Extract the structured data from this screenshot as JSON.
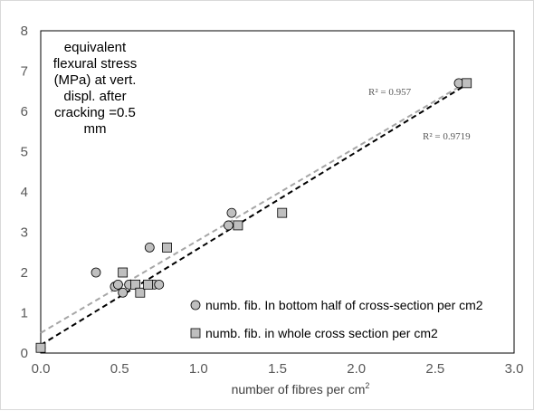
{
  "chart_data": {
    "type": "scatter",
    "ylabel_lines": [
      "equivalent",
      "flexural stress",
      "(MPa) at vert.",
      "displ. after",
      "cracking =0.5",
      "mm"
    ],
    "xlabel": "number of fibres per cm",
    "xlabel_sup": "2",
    "xlim": [
      0,
      3.0
    ],
    "ylim": [
      0,
      8
    ],
    "xticks": [
      "0.0",
      "0.5",
      "1.0",
      "1.5",
      "2.0",
      "2.5",
      "3.0"
    ],
    "yticks": [
      "0",
      "1",
      "2",
      "3",
      "4",
      "5",
      "6",
      "7",
      "8"
    ],
    "xtick_values": [
      0,
      0.5,
      1.0,
      1.5,
      2.0,
      2.5,
      3.0
    ],
    "ytick_values": [
      0,
      1,
      2,
      3,
      4,
      5,
      6,
      7,
      8
    ],
    "grid": false,
    "legend_position": "bottom-right",
    "series": [
      {
        "name": "numb. fib. In bottom half of cross-section per cm2",
        "marker": "circle",
        "color": "#bfbfbf",
        "points": [
          [
            0.0,
            0.13
          ],
          [
            0.35,
            2.0
          ],
          [
            0.47,
            1.65
          ],
          [
            0.49,
            1.7
          ],
          [
            0.52,
            1.5
          ],
          [
            0.56,
            1.7
          ],
          [
            0.6,
            1.7
          ],
          [
            0.69,
            2.62
          ],
          [
            0.72,
            1.7
          ],
          [
            0.75,
            1.7
          ],
          [
            1.19,
            3.17
          ],
          [
            1.21,
            3.48
          ],
          [
            2.65,
            6.7
          ]
        ],
        "trendline": {
          "x": [
            0,
            2.7
          ],
          "y": [
            0.5,
            6.72
          ],
          "color": "#a6a6a6",
          "r2": "R² = 0.957"
        }
      },
      {
        "name": "numb. fib. in whole cross section per cm2",
        "marker": "square",
        "color": "#bfbfbf",
        "points": [
          [
            0.0,
            0.13
          ],
          [
            0.52,
            2.0
          ],
          [
            0.6,
            1.7
          ],
          [
            0.63,
            1.5
          ],
          [
            0.68,
            1.7
          ],
          [
            0.8,
            2.62
          ],
          [
            1.25,
            3.17
          ],
          [
            1.53,
            3.48
          ],
          [
            2.7,
            6.7
          ]
        ],
        "trendline": {
          "x": [
            0,
            2.68
          ],
          "y": [
            0.2,
            6.62
          ],
          "color": "#000000",
          "r2": "R² = 0.9719"
        }
      }
    ]
  }
}
